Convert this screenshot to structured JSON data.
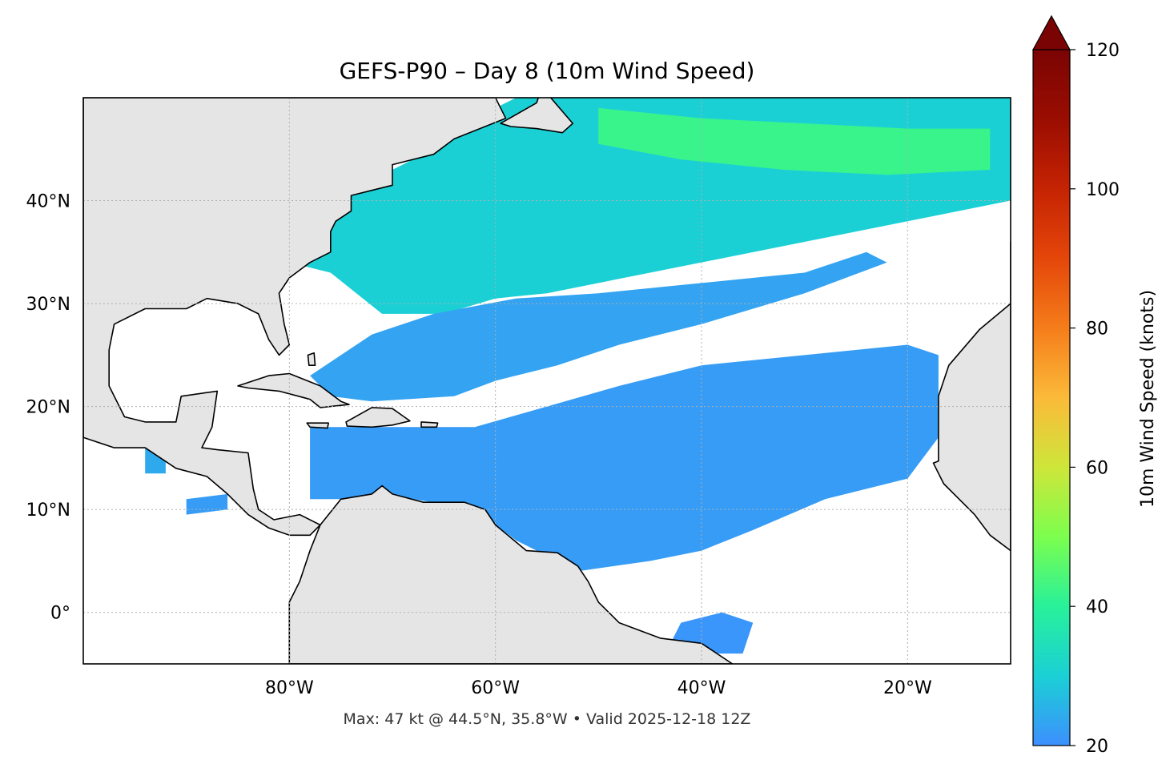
{
  "title": "GEFS-P90 – Day 8 (10m Wind Speed)",
  "footer": "Max: 47 kt @ 44.5°N, 35.8°W • Valid 2025-12-18 12Z",
  "map": {
    "extent_lon": [
      -100,
      -10
    ],
    "extent_lat": [
      -5,
      50
    ],
    "lat_ticks": [
      {
        "value": 40,
        "label": "40°N"
      },
      {
        "value": 30,
        "label": "30°N"
      },
      {
        "value": 20,
        "label": "20°N"
      },
      {
        "value": 10,
        "label": "10°N"
      },
      {
        "value": 0,
        "label": "0°"
      }
    ],
    "lon_ticks": [
      {
        "value": -80,
        "label": "80°W"
      },
      {
        "value": -60,
        "label": "60°W"
      },
      {
        "value": -40,
        "label": "40°W"
      },
      {
        "value": -20,
        "label": "20°W"
      }
    ],
    "gridlines": true,
    "colors": {
      "land": "#e5e5e5",
      "coastline": "#000000",
      "borders": "#666666",
      "ocean": "#ffffff",
      "grid": "#b0b0b0"
    }
  },
  "colorbar": {
    "label": "10m Wind Speed (knots)",
    "ticks": [
      {
        "value": 120,
        "label": "120"
      },
      {
        "value": 100,
        "label": "100"
      },
      {
        "value": 80,
        "label": "80"
      },
      {
        "value": 60,
        "label": "60"
      },
      {
        "value": 40,
        "label": "40"
      },
      {
        "value": 20,
        "label": "20"
      }
    ],
    "range": [
      20,
      120
    ],
    "extend": "max",
    "colormap": [
      {
        "value": 20,
        "color": "#3d8ffe"
      },
      {
        "value": 30,
        "color": "#1bd0d5"
      },
      {
        "value": 40,
        "color": "#28f19a"
      },
      {
        "value": 50,
        "color": "#7cfe4e"
      },
      {
        "value": 60,
        "color": "#cee63a"
      },
      {
        "value": 70,
        "color": "#fbba39"
      },
      {
        "value": 80,
        "color": "#f57d1b"
      },
      {
        "value": 90,
        "color": "#e4460a"
      },
      {
        "value": 100,
        "color": "#c52303"
      },
      {
        "value": 110,
        "color": "#9a0d01"
      },
      {
        "value": 120,
        "color": "#7a0403"
      }
    ]
  },
  "max_marker": {
    "value_kt": 47,
    "lat": 44.5,
    "lon": -35.8
  },
  "wind_regions": [
    {
      "name": "north-atlantic-band",
      "speed_kt": 30,
      "polygon": [
        [
          -84,
          48.5
        ],
        [
          -80,
          47.5
        ],
        [
          -76,
          46
        ],
        [
          -70,
          46.5
        ],
        [
          -64,
          47
        ],
        [
          -58,
          50
        ],
        [
          -30,
          50
        ],
        [
          -10,
          50
        ],
        [
          -10,
          40
        ],
        [
          -30,
          36
        ],
        [
          -45,
          33
        ],
        [
          -55,
          31
        ],
        [
          -60,
          30.5
        ],
        [
          -65,
          29
        ],
        [
          -71,
          29
        ],
        [
          -76,
          33
        ],
        [
          -80,
          34
        ],
        [
          -82,
          36
        ],
        [
          -78,
          38
        ],
        [
          -73,
          41
        ],
        [
          -70,
          43
        ],
        [
          -66,
          45
        ]
      ]
    },
    {
      "name": "north-atlantic-strong-core",
      "speed_kt": 42,
      "polygon": [
        [
          -50,
          49
        ],
        [
          -40,
          48
        ],
        [
          -30,
          47.5
        ],
        [
          -20,
          47
        ],
        [
          -12,
          47
        ],
        [
          -12,
          43
        ],
        [
          -22,
          42.5
        ],
        [
          -32,
          43
        ],
        [
          -42,
          44
        ],
        [
          -50,
          45.5
        ]
      ]
    },
    {
      "name": "subtropical-band",
      "speed_kt": 23,
      "polygon": [
        [
          -78,
          23
        ],
        [
          -72,
          27
        ],
        [
          -66,
          29
        ],
        [
          -58,
          30.5
        ],
        [
          -50,
          31
        ],
        [
          -40,
          32
        ],
        [
          -30,
          33
        ],
        [
          -24,
          35
        ],
        [
          -22,
          34
        ],
        [
          -30,
          31
        ],
        [
          -40,
          28
        ],
        [
          -48,
          26
        ],
        [
          -54,
          24
        ],
        [
          -60,
          22.5
        ],
        [
          -64,
          21
        ],
        [
          -72,
          20.5
        ],
        [
          -76,
          21
        ]
      ]
    },
    {
      "name": "trade-wind-band",
      "speed_kt": 22,
      "polygon": [
        [
          -78,
          18
        ],
        [
          -70,
          18
        ],
        [
          -62,
          18
        ],
        [
          -55,
          20
        ],
        [
          -48,
          22
        ],
        [
          -40,
          24
        ],
        [
          -30,
          25
        ],
        [
          -20,
          26
        ],
        [
          -17,
          25
        ],
        [
          -17,
          17
        ],
        [
          -20,
          13
        ],
        [
          -28,
          11
        ],
        [
          -35,
          8
        ],
        [
          -40,
          6
        ],
        [
          -45,
          5
        ],
        [
          -52,
          4
        ],
        [
          -58,
          7
        ],
        [
          -62,
          10
        ],
        [
          -68,
          11
        ],
        [
          -74,
          11
        ],
        [
          -78,
          11
        ]
      ]
    },
    {
      "name": "equatorial-patch",
      "speed_kt": 21,
      "polygon": [
        [
          -42,
          -1
        ],
        [
          -38,
          0
        ],
        [
          -35,
          -1
        ],
        [
          -36,
          -4
        ],
        [
          -40,
          -4
        ],
        [
          -43,
          -3
        ]
      ]
    },
    {
      "name": "east-pacific-patch",
      "speed_kt": 24,
      "polygon": [
        [
          -94,
          16
        ],
        [
          -92,
          16
        ],
        [
          -92,
          13.5
        ],
        [
          -94,
          13.5
        ]
      ]
    },
    {
      "name": "central-america-pacific-patch",
      "speed_kt": 22,
      "polygon": [
        [
          -90,
          11
        ],
        [
          -86,
          11.5
        ],
        [
          -86,
          10
        ],
        [
          -90,
          9.5
        ]
      ]
    }
  ],
  "land_polygons": [
    {
      "name": "north-america",
      "polygon": [
        [
          -100,
          50
        ],
        [
          -60,
          50
        ],
        [
          -59,
          48
        ],
        [
          -64,
          46
        ],
        [
          -66,
          44.5
        ],
        [
          -70,
          43.5
        ],
        [
          -70,
          41.5
        ],
        [
          -72,
          41
        ],
        [
          -74,
          40.5
        ],
        [
          -74,
          39
        ],
        [
          -75.5,
          38
        ],
        [
          -76,
          37
        ],
        [
          -76,
          35
        ],
        [
          -78,
          34
        ],
        [
          -80,
          32.5
        ],
        [
          -81,
          31
        ],
        [
          -80.5,
          28
        ],
        [
          -80,
          26
        ],
        [
          -81,
          25
        ],
        [
          -82,
          26.5
        ],
        [
          -83,
          29
        ],
        [
          -85,
          30
        ],
        [
          -88,
          30.5
        ],
        [
          -90,
          29.5
        ],
        [
          -94,
          29.5
        ],
        [
          -97,
          28
        ],
        [
          -97.5,
          25.5
        ],
        [
          -97.5,
          22
        ],
        [
          -96,
          19
        ],
        [
          -94,
          18.5
        ],
        [
          -91,
          18.5
        ],
        [
          -90.5,
          21
        ],
        [
          -87,
          21.5
        ],
        [
          -87.5,
          18
        ],
        [
          -88.5,
          16
        ],
        [
          -87,
          15.8
        ],
        [
          -84,
          15.5
        ],
        [
          -83.5,
          12
        ],
        [
          -83,
          10
        ],
        [
          -81.5,
          9
        ],
        [
          -79,
          9.5
        ],
        [
          -77,
          8.5
        ],
        [
          -78,
          7.5
        ],
        [
          -80,
          7.5
        ],
        [
          -82,
          8.2
        ],
        [
          -84,
          9.5
        ],
        [
          -86,
          11.5
        ],
        [
          -88,
          13.2
        ],
        [
          -91,
          14
        ],
        [
          -94,
          16
        ],
        [
          -97,
          16
        ],
        [
          -100,
          17
        ],
        [
          -100,
          50
        ]
      ]
    },
    {
      "name": "south-america",
      "polygon": [
        [
          -77,
          8.5
        ],
        [
          -75,
          11
        ],
        [
          -72,
          11.5
        ],
        [
          -71,
          12.3
        ],
        [
          -70,
          11.5
        ],
        [
          -67,
          10.7
        ],
        [
          -63,
          10.7
        ],
        [
          -61,
          10
        ],
        [
          -60,
          8.5
        ],
        [
          -57,
          6
        ],
        [
          -54,
          5.8
        ],
        [
          -52,
          4.5
        ],
        [
          -51,
          3
        ],
        [
          -50,
          1
        ],
        [
          -48,
          -1
        ],
        [
          -44,
          -2.5
        ],
        [
          -40,
          -3
        ],
        [
          -37,
          -5
        ],
        [
          -80,
          -5
        ],
        [
          -80,
          -2
        ],
        [
          -80,
          1
        ],
        [
          -79,
          3
        ],
        [
          -78,
          6
        ]
      ]
    },
    {
      "name": "africa",
      "polygon": [
        [
          -10,
          36
        ],
        [
          -10,
          30
        ],
        [
          -13,
          27.5
        ],
        [
          -16,
          24
        ],
        [
          -17,
          21
        ],
        [
          -17,
          14.7
        ],
        [
          -17.5,
          14.5
        ],
        [
          -16.5,
          12.5
        ],
        [
          -15,
          11
        ],
        [
          -13.5,
          9.5
        ],
        [
          -12,
          7.5
        ],
        [
          -10,
          6
        ],
        [
          -10,
          36
        ]
      ]
    },
    {
      "name": "cuba",
      "polygon": [
        [
          -85,
          22
        ],
        [
          -82,
          23
        ],
        [
          -80,
          23.2
        ],
        [
          -77,
          22
        ],
        [
          -75,
          20.5
        ],
        [
          -74.2,
          20.2
        ],
        [
          -77,
          19.9
        ],
        [
          -78,
          20.7
        ],
        [
          -81,
          21.5
        ],
        [
          -84,
          21.8
        ]
      ]
    },
    {
      "name": "hispaniola",
      "polygon": [
        [
          -74.5,
          18.5
        ],
        [
          -72,
          19.9
        ],
        [
          -70,
          19.8
        ],
        [
          -68.3,
          18.6
        ],
        [
          -70,
          18.2
        ],
        [
          -72,
          18
        ],
        [
          -74.4,
          18.1
        ]
      ]
    },
    {
      "name": "jamaica",
      "polygon": [
        [
          -78.3,
          18.4
        ],
        [
          -76.2,
          18.4
        ],
        [
          -76.3,
          17.9
        ],
        [
          -78,
          18
        ]
      ]
    },
    {
      "name": "puerto-rico",
      "polygon": [
        [
          -67.2,
          18.5
        ],
        [
          -65.6,
          18.4
        ],
        [
          -65.7,
          18
        ],
        [
          -67.2,
          18
        ]
      ]
    },
    {
      "name": "bahamas-andros",
      "polygon": [
        [
          -78.2,
          25
        ],
        [
          -77.6,
          25.2
        ],
        [
          -77.5,
          24
        ],
        [
          -78.1,
          24
        ]
      ]
    },
    {
      "name": "newfoundland",
      "polygon": [
        [
          -59.5,
          47.5
        ],
        [
          -56,
          49.5
        ],
        [
          -55.5,
          51
        ],
        [
          -52.5,
          47.5
        ],
        [
          -53.5,
          46.6
        ],
        [
          -56,
          47
        ],
        [
          -58.5,
          47.2
        ]
      ]
    }
  ]
}
